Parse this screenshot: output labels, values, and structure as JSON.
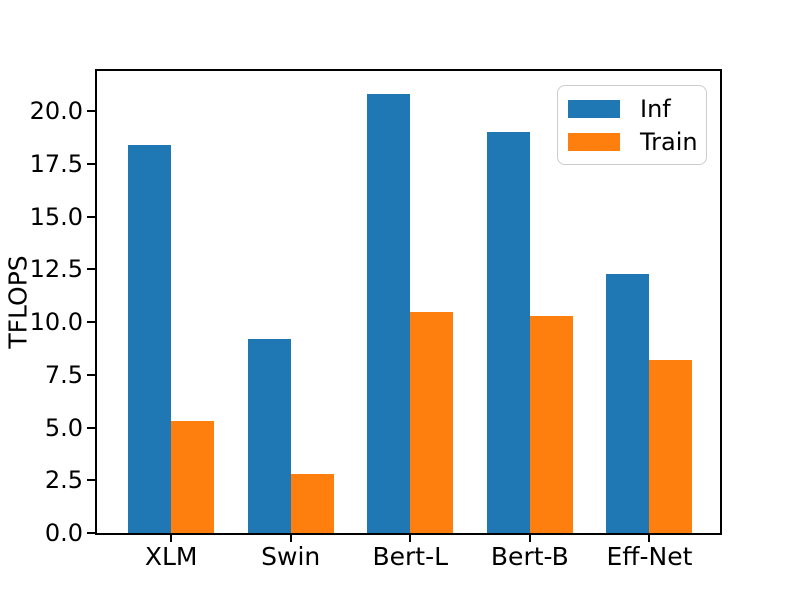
{
  "figure": {
    "background": "#ffffff",
    "text_color": "#000000"
  },
  "chart_data": {
    "type": "bar",
    "title": "",
    "xlabel": "",
    "ylabel": "TFLOPS",
    "categories": [
      "XLM",
      "Swin",
      "Bert-L",
      "Bert-B",
      "Eff-Net"
    ],
    "series": [
      {
        "name": "Inf",
        "color": "#1f77b4",
        "values": [
          18.4,
          9.2,
          20.8,
          19.0,
          12.3
        ]
      },
      {
        "name": "Train",
        "color": "#ff7f0e",
        "values": [
          5.3,
          2.8,
          10.5,
          10.3,
          8.2
        ]
      }
    ],
    "ylim": [
      0,
      21.9
    ],
    "yticks": [
      0,
      2.5,
      5,
      7.5,
      10,
      12.5,
      15,
      17.5,
      20
    ],
    "ytick_labels": [
      "0.0",
      "2.5",
      "5.0",
      "7.5",
      "10.0",
      "12.5",
      "15.0",
      "17.5",
      "20.0"
    ],
    "xlim": [
      -0.62,
      4.59
    ],
    "bar_width": 0.36,
    "grid": false,
    "legend_position": "upper right"
  }
}
